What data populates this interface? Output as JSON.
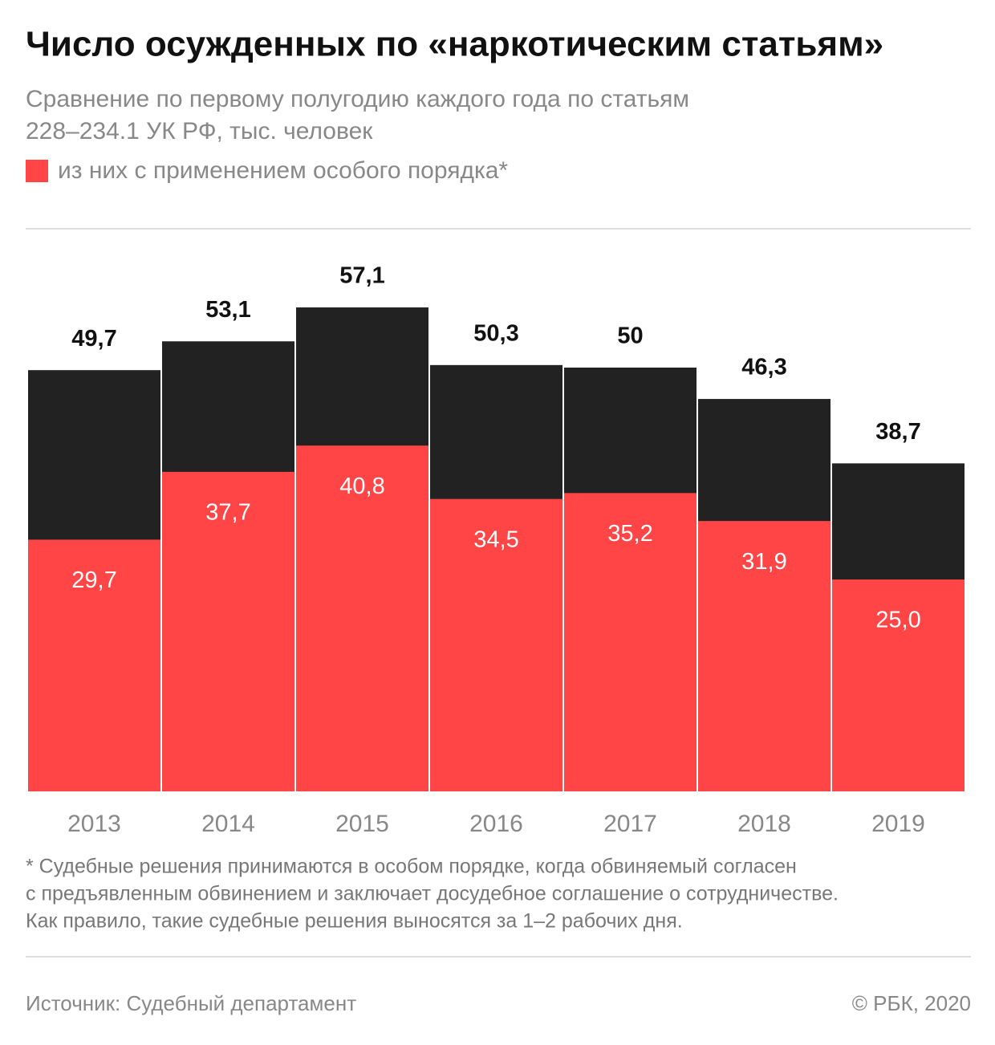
{
  "chart_data": {
    "type": "overlap-bar",
    "title": "Число осужденных по «наркотическим статьям»",
    "subtitle": [
      "Сравнение по первому полугодию каждого года по статьям",
      "228–234.1 УК РФ, тыс. человек"
    ],
    "categories": [
      "2013",
      "2014",
      "2015",
      "2016",
      "2017",
      "2018",
      "2019"
    ],
    "series": [
      {
        "color": "#222222",
        "values": [
          49.7,
          53.1,
          57.1,
          50.3,
          50,
          46.3,
          38.7
        ],
        "value_labels": [
          "49,7",
          "53,1",
          "57,1",
          "50,3",
          "50",
          "46,3",
          "38,7"
        ]
      },
      {
        "name": "из них с применением особого порядка*",
        "color": "#ff4545",
        "values": [
          29.7,
          37.7,
          40.8,
          34.5,
          35.2,
          31.9,
          25.0
        ],
        "value_labels": [
          "29,7",
          "37,7",
          "40,8",
          "34,5",
          "35,2",
          "31,9",
          "25,0"
        ]
      }
    ],
    "footnote": [
      "* Судебные решения принимаются в особом порядке, когда обвиняемый согласен",
      "с предъявленным обвинением и заключает досудебное соглашение о сотрудничестве.",
      "Как правило, такие судебные решения выносятся за 1–2 рабочих дня."
    ],
    "source": "Источник: Судебный департамент",
    "copyright": "© РБК, 2020"
  }
}
